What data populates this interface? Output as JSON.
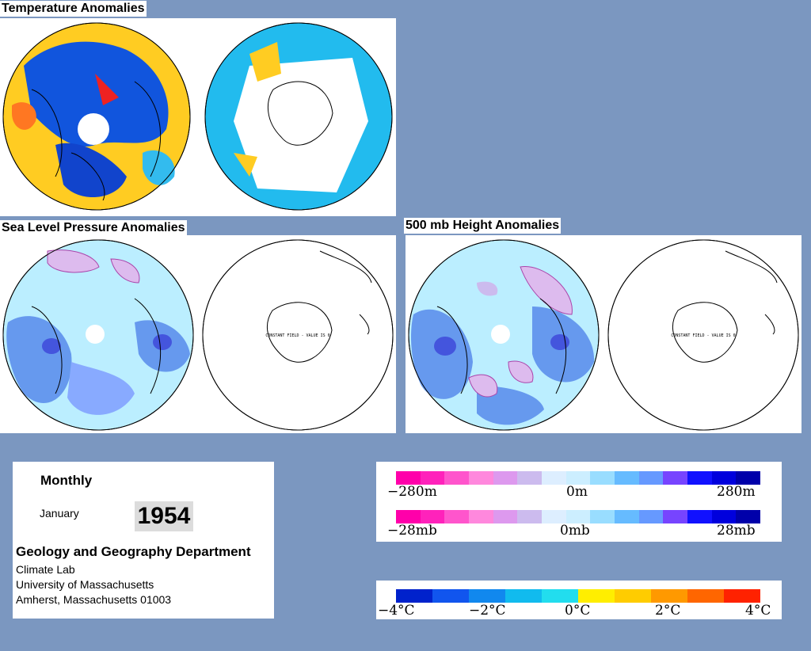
{
  "titles": {
    "temperature": "Temperature Anomalies",
    "slp": "Sea Level Pressure Anomalies",
    "height500": "500 mb Height Anomalies"
  },
  "maps": {
    "constant_field_text": "CONSTANT FIELD - VALUE IS 0"
  },
  "info": {
    "period": "Monthly",
    "month": "January",
    "year": "1954",
    "department": "Geology and Geography Department",
    "lab": "Climate Lab",
    "university": "University of Massachusetts",
    "address": "Amherst, Massachusetts 01003"
  },
  "legends": {
    "height": {
      "left": "−280m",
      "center": "0m",
      "right": "280m"
    },
    "pressure": {
      "left": "−28mb",
      "center": "0mb",
      "right": "28mb"
    },
    "temperature": {
      "labels": [
        "−4°C",
        "−2°C",
        "0°C",
        "2°C",
        "4°C"
      ]
    }
  },
  "colors": {
    "background": "#7b97c0",
    "anomaly_scale": [
      "#ff00aa",
      "#ff22bb",
      "#ff55cc",
      "#ff88dd",
      "#dd99ee",
      "#ccbbee",
      "#ddeeff",
      "#cceeff",
      "#99ddff",
      "#66bbff",
      "#6699ff",
      "#7744ff",
      "#1111ff",
      "#0000dd",
      "#0000aa"
    ],
    "temperature_scale": [
      "#0022cc",
      "#1155ee",
      "#1188ee",
      "#11bbee",
      "#22ddee",
      "#ffee00",
      "#ffcc00",
      "#ff9900",
      "#ff6600",
      "#ff2200"
    ]
  }
}
